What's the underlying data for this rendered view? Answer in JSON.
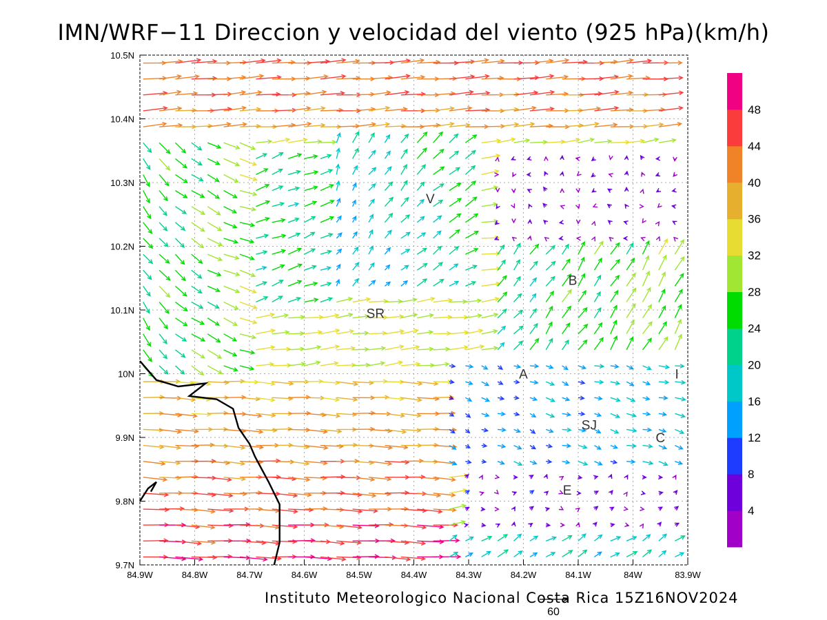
{
  "title": "IMN/WRF−11 Direccion y velocidad del viento (925 hPa)(km/h)",
  "credit": "Instituto Meteorologico Nacional Costa Rica  15Z16NOV2024",
  "reference_vector": {
    "label": "60",
    "value": 60
  },
  "axes": {
    "lon_range": [
      -84.9,
      -83.9
    ],
    "lat_range": [
      9.7,
      10.5
    ],
    "x_ticks": [
      "84.9W",
      "84.8W",
      "84.7W",
      "84.6W",
      "84.5W",
      "84.4W",
      "84.3W",
      "84.2W",
      "84.1W",
      "84W",
      "83.9W"
    ],
    "y_ticks": [
      "9.7N",
      "9.8N",
      "9.9N",
      "10N",
      "10.1N",
      "10.2N",
      "10.3N",
      "10.4N",
      "10.5N"
    ],
    "grid": "dotted"
  },
  "colorbar": {
    "labels": [
      "4",
      "8",
      "12",
      "16",
      "20",
      "24",
      "28",
      "32",
      "36",
      "40",
      "44",
      "48"
    ],
    "colors": [
      "#a000c8",
      "#6e00dc",
      "#1e3cff",
      "#00a0ff",
      "#00c8c8",
      "#00d28c",
      "#00dc00",
      "#a0e632",
      "#e6dc32",
      "#e6af2d",
      "#f08228",
      "#fa3c3c",
      "#f00082"
    ]
  },
  "places": [
    {
      "name": "V",
      "lon": -84.37,
      "lat": 10.275
    },
    {
      "name": "SR",
      "lon": -84.47,
      "lat": 10.095
    },
    {
      "name": "B",
      "lon": -84.11,
      "lat": 10.147
    },
    {
      "name": "A",
      "lon": -84.2,
      "lat": 10.0
    },
    {
      "name": "I",
      "lon": -83.92,
      "lat": 10.0
    },
    {
      "name": "SJ",
      "lon": -84.08,
      "lat": 9.92
    },
    {
      "name": "C",
      "lon": -83.95,
      "lat": 9.9
    },
    {
      "name": "E",
      "lon": -84.12,
      "lat": 9.818
    }
  ],
  "coast": [
    [
      [
        -84.9,
        10.02
      ],
      [
        -84.87,
        9.99
      ],
      [
        -84.83,
        9.98
      ],
      [
        -84.78,
        9.985
      ],
      [
        -84.81,
        9.965
      ],
      [
        -84.76,
        9.96
      ],
      [
        -84.73,
        9.945
      ],
      [
        -84.72,
        9.915
      ],
      [
        -84.7,
        9.89
      ],
      [
        -84.69,
        9.87
      ],
      [
        -84.665,
        9.83
      ],
      [
        -84.645,
        9.795
      ],
      [
        -84.645,
        9.735
      ],
      [
        -84.655,
        9.7
      ]
    ],
    [
      [
        -84.9,
        9.8
      ],
      [
        -84.885,
        9.82
      ],
      [
        -84.87,
        9.83
      ],
      [
        -84.88,
        9.815
      ]
    ]
  ],
  "colors": {
    "frame": "#000000",
    "grid": "#aaaaaa",
    "coast": "#000000"
  }
}
